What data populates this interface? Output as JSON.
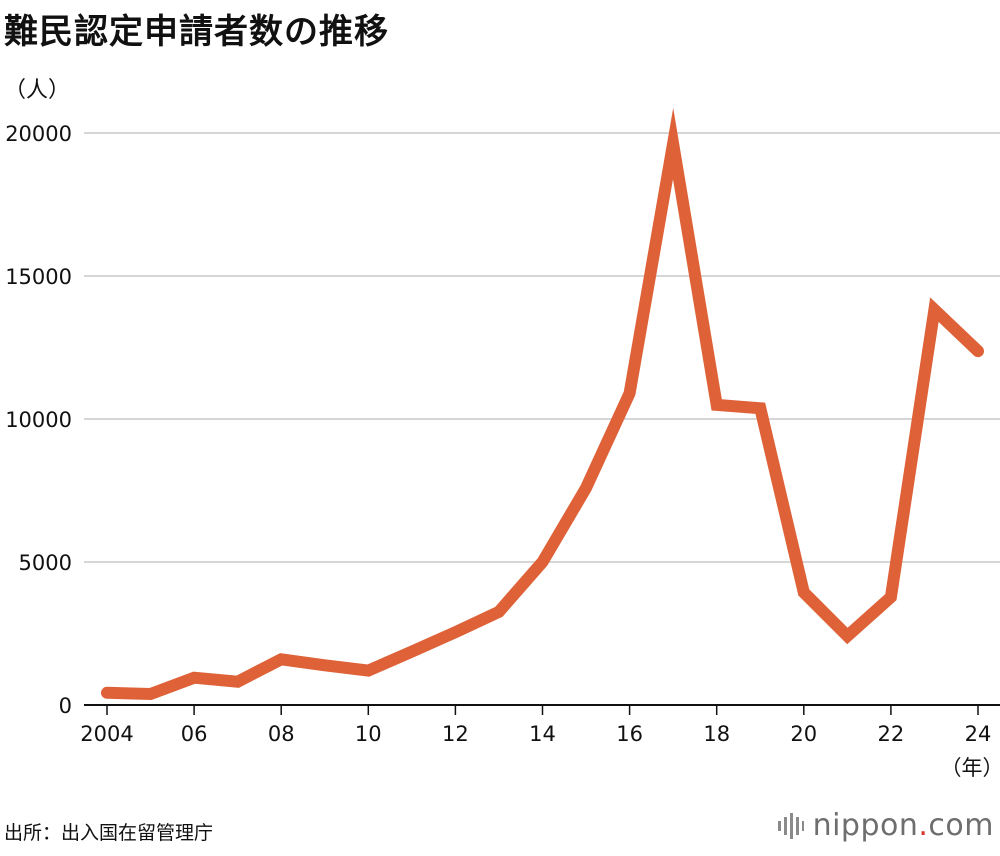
{
  "title": "難民認定申請者数の推移",
  "source": "出所：出入国在留管理庁",
  "logo": {
    "name_part1": "nippon",
    "dot": ".",
    "name_part2": "com",
    "dot_color": "#d9352b"
  },
  "chart_data": {
    "type": "line",
    "ylabel": "（人）",
    "xunit": "（年）",
    "ylim": [
      0,
      20000
    ],
    "yticks": [
      0,
      5000,
      10000,
      15000,
      20000
    ],
    "xticks": [
      {
        "year": 2004,
        "label": "2004"
      },
      {
        "year": 2006,
        "label": "06"
      },
      {
        "year": 2008,
        "label": "08"
      },
      {
        "year": 2010,
        "label": "10"
      },
      {
        "year": 2012,
        "label": "12"
      },
      {
        "year": 2014,
        "label": "14"
      },
      {
        "year": 2016,
        "label": "16"
      },
      {
        "year": 2018,
        "label": "18"
      },
      {
        "year": 2020,
        "label": "20"
      },
      {
        "year": 2022,
        "label": "22"
      },
      {
        "year": 2024,
        "label": "24"
      }
    ],
    "grid": true,
    "line_color": "#de6138",
    "x": [
      2004,
      2005,
      2006,
      2007,
      2008,
      2009,
      2010,
      2011,
      2012,
      2013,
      2014,
      2015,
      2016,
      2017,
      2018,
      2019,
      2020,
      2021,
      2022,
      2023,
      2024
    ],
    "values": [
      426,
      384,
      954,
      816,
      1599,
      1388,
      1202,
      1867,
      2545,
      3260,
      5000,
      7586,
      10901,
      19629,
      10493,
      10375,
      3936,
      2413,
      3772,
      13823,
      12373
    ]
  }
}
